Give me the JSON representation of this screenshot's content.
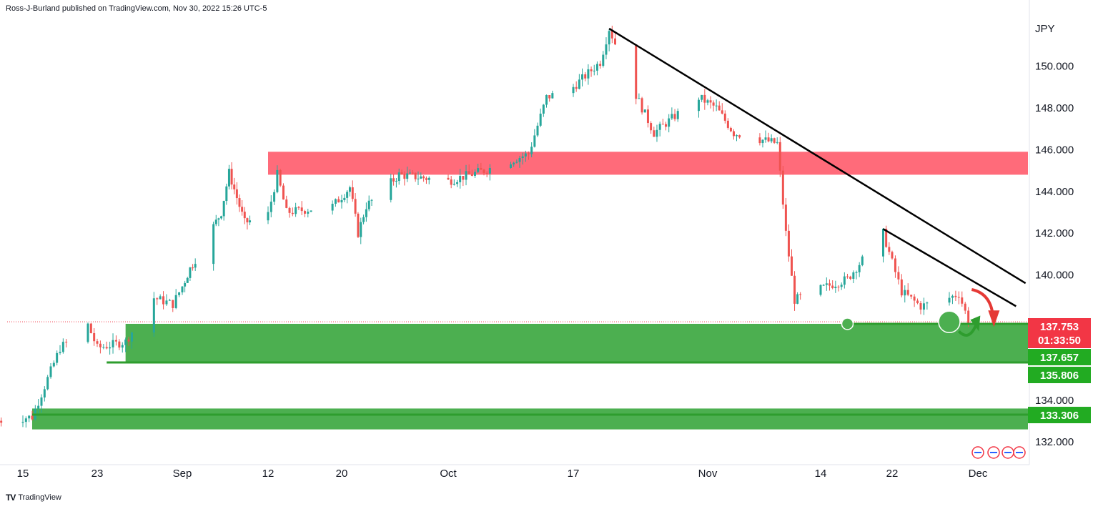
{
  "header": {
    "text": "Ross-J-Burland published on TradingView.com, Nov 30, 2022 15:26 UTC-5"
  },
  "footer": {
    "logo_text": "TV",
    "brand": "TradingView"
  },
  "colors": {
    "up": "#26a69a",
    "down": "#ef5350",
    "resistance_zone": "#ff6b7a",
    "support_zone": "#4caf50",
    "support_line": "#2e9d2e",
    "trendline": "#000000",
    "arrow_red": "#e53935",
    "arrow_green": "#2e9d2e",
    "badge_red": "#f23645",
    "badge_green": "#22ab22"
  },
  "chart_data": {
    "type": "candlestick",
    "currency_label": "JPY",
    "y_ticks": [
      "150.000",
      "148.000",
      "146.000",
      "144.000",
      "142.000",
      "140.000",
      "134.000",
      "132.000"
    ],
    "y_tick_values": [
      150,
      148,
      146,
      144,
      142,
      140,
      134,
      132
    ],
    "ylim": [
      131.2,
      152.2
    ],
    "x_ticks": [
      "15",
      "23",
      "Sep",
      "12",
      "20",
      "Oct",
      "17",
      "Nov",
      "14",
      "22",
      "Dec"
    ],
    "x_tick_dates": [
      "2022-08-15",
      "2022-08-23",
      "2022-09-01",
      "2022-09-12",
      "2022-09-20",
      "2022-10-03",
      "2022-10-17",
      "2022-11-01",
      "2022-11-14",
      "2022-11-22",
      "2022-12-01"
    ],
    "price_path": [
      [
        "2022-08-12",
        133.0
      ],
      [
        "2022-08-16",
        133.2
      ],
      [
        "2022-08-19",
        136.5
      ],
      [
        "2022-08-22",
        137.6
      ],
      [
        "2022-08-23",
        136.5
      ],
      [
        "2022-08-26",
        136.8
      ],
      [
        "2022-08-29",
        138.9
      ],
      [
        "2022-08-31",
        138.6
      ],
      [
        "2022-09-02",
        140.3
      ],
      [
        "2022-09-06",
        143.0
      ],
      [
        "2022-09-07",
        144.9
      ],
      [
        "2022-09-09",
        142.5
      ],
      [
        "2022-09-12",
        142.9
      ],
      [
        "2022-09-13",
        144.8
      ],
      [
        "2022-09-14",
        143.0
      ],
      [
        "2022-09-19",
        143.3
      ],
      [
        "2022-09-21",
        144.2
      ],
      [
        "2022-09-22",
        142.0
      ],
      [
        "2022-09-23",
        143.3
      ],
      [
        "2022-09-27",
        144.8
      ],
      [
        "2022-10-03",
        144.5
      ],
      [
        "2022-10-07",
        145.0
      ],
      [
        "2022-10-12",
        145.8
      ],
      [
        "2022-10-14",
        148.5
      ],
      [
        "2022-10-17",
        149.0
      ],
      [
        "2022-10-20",
        150.2
      ],
      [
        "2022-10-21",
        151.8
      ],
      [
        "2022-10-24",
        148.6
      ],
      [
        "2022-10-26",
        146.8
      ],
      [
        "2022-10-28",
        147.5
      ],
      [
        "2022-10-31",
        148.5
      ],
      [
        "2022-11-02",
        148.0
      ],
      [
        "2022-11-04",
        146.8
      ],
      [
        "2022-11-07",
        146.5
      ],
      [
        "2022-11-09",
        146.3
      ],
      [
        "2022-11-10",
        142.0
      ],
      [
        "2022-11-11",
        138.8
      ],
      [
        "2022-11-15",
        139.5
      ],
      [
        "2022-11-17",
        139.8
      ],
      [
        "2022-11-21",
        142.0
      ],
      [
        "2022-11-23",
        139.2
      ],
      [
        "2022-11-25",
        138.5
      ],
      [
        "2022-11-28",
        138.9
      ],
      [
        "2022-11-29",
        139.1
      ],
      [
        "2022-11-30",
        137.8
      ]
    ],
    "resistance_zone": {
      "low": 144.8,
      "high": 145.9,
      "start": "2022-09-12"
    },
    "support_zone_1": {
      "low": 135.806,
      "high": 137.657,
      "start": "2022-08-26"
    },
    "support_zone_2": {
      "low": 132.6,
      "high": 133.6,
      "start": "2022-08-16"
    },
    "support_line_1": {
      "value": 135.806,
      "start": "2022-08-24"
    },
    "support_line_2": {
      "value": 133.306,
      "start": "2022-08-16"
    },
    "support_line_3": {
      "value": 137.657,
      "start": "2022-11-17"
    },
    "trendline_1": {
      "from": [
        "2022-10-21",
        151.8
      ],
      "to": [
        "2022-12-06",
        139.6
      ]
    },
    "trendline_2": {
      "from": [
        "2022-11-21",
        142.2
      ],
      "to": [
        "2022-12-05",
        138.5
      ]
    },
    "markers": [
      {
        "date": "2022-11-17",
        "value": 137.657,
        "size": "small"
      },
      {
        "date": "2022-11-28",
        "value": 137.75,
        "size": "large"
      }
    ],
    "current_price_line": 137.753,
    "price_badges": [
      {
        "label": "137.753",
        "sub": "01:33:50",
        "value": 137.753,
        "color": "red"
      },
      {
        "label": "137.657",
        "value": 137.657,
        "color": "green"
      },
      {
        "label": "135.806",
        "value": 135.806,
        "color": "green"
      },
      {
        "label": "133.306",
        "value": 133.306,
        "color": "green"
      }
    ]
  }
}
